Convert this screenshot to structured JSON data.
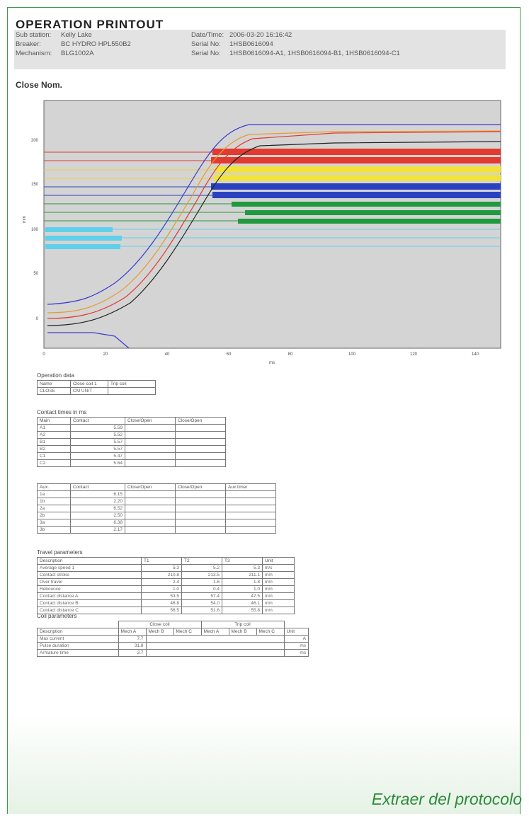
{
  "title": "OPERATION PRINTOUT",
  "header": {
    "labels": [
      "Sub station:",
      "Breaker:",
      "Mechanism:"
    ],
    "values": [
      "Kelly Lake",
      "BC HYDRO HPL550B2",
      "BLG1002A"
    ],
    "right_labels": [
      "Date/Time:",
      "Serial No:",
      "Serial No:"
    ],
    "right_values": [
      "2006-03-20 16:16:42",
      "1HSB0616094",
      "1HSB0616094-A1, 1HSB0616094-B1, 1HSB0616094-C1"
    ]
  },
  "subtitle": "Close   Nom.",
  "chart_data": {
    "type": "line",
    "x_ticks": [
      "0",
      "20",
      "40",
      "60",
      "80",
      "100",
      "120",
      "140"
    ],
    "y_ticks": [
      "200",
      "150",
      "100",
      "50",
      "0"
    ],
    "xlabel": "ms",
    "ylabel": "mm"
  },
  "operation_data": {
    "title": "Operation data",
    "headers": [
      "Name",
      "Close coil 1",
      "Trip coil"
    ],
    "row": [
      "CLOSE",
      "CM UNIT",
      ""
    ]
  },
  "contact_times": {
    "title": "Contact times in ms",
    "headers": [
      "Main",
      "Contact",
      "Close/Open",
      "Close/Open"
    ],
    "rows": [
      [
        "A1",
        "5.59"
      ],
      [
        "A2",
        "5.52"
      ],
      [
        "B1",
        "5.57"
      ],
      [
        "B2",
        "5.57"
      ],
      [
        "C1",
        "5.47"
      ],
      [
        "C2",
        "5.64"
      ]
    ],
    "aux_headers": [
      "Aux.",
      "Contact",
      "Close/Open",
      "Close/Open",
      "Aux timer"
    ],
    "aux_rows": [
      [
        "1a",
        "6.15"
      ],
      [
        "1b",
        "2.20"
      ],
      [
        "2a",
        "6.52"
      ],
      [
        "2b",
        "2.50"
      ],
      [
        "3a",
        "6.38"
      ],
      [
        "3b",
        "2.17"
      ]
    ]
  },
  "travel": {
    "title": "Travel parameters",
    "headers": [
      "Description",
      "T1",
      "T2",
      "T3",
      "Unit"
    ],
    "rows": [
      [
        "Average speed 1",
        "5.3",
        "5.2",
        "5.3",
        "m/s"
      ],
      [
        "Contact stroke",
        "210.8",
        "213.5",
        "211.1",
        "mm"
      ],
      [
        "Over travel",
        "2.4",
        "1.6",
        "1.8",
        "mm"
      ],
      [
        "Rebounce",
        "1.0",
        "0.4",
        "1.0",
        "mm"
      ],
      [
        "Contact distance A",
        "53.5",
        "57.4",
        "47.5",
        "mm"
      ],
      [
        "Contact distance B",
        "46.8",
        "54.0",
        "46.1",
        "mm"
      ],
      [
        "Contact distance C",
        "56.5",
        "51.6",
        "55.8",
        "mm"
      ]
    ]
  },
  "coil": {
    "title": "Coil parameters",
    "group_headers": [
      "Close coil",
      "Trip coil"
    ],
    "headers": [
      "Description",
      "Mech A",
      "Mech B",
      "Mech C",
      "Mech A",
      "Mech B",
      "Mech C",
      "Unit"
    ],
    "rows": [
      [
        "Max current",
        "7.7",
        "A"
      ],
      [
        "Pulse duration",
        "31.8",
        "ms"
      ],
      [
        "Armature time",
        "3.7",
        "ms"
      ]
    ]
  },
  "caption": "Extraer del protocolo",
  "colors": {
    "frame": "#3c9a4a",
    "red": "#e23a2e",
    "yellow": "#f2e23a",
    "blue": "#2a42c0",
    "green": "#1f9a3e",
    "cyan": "#5fd0ea"
  }
}
